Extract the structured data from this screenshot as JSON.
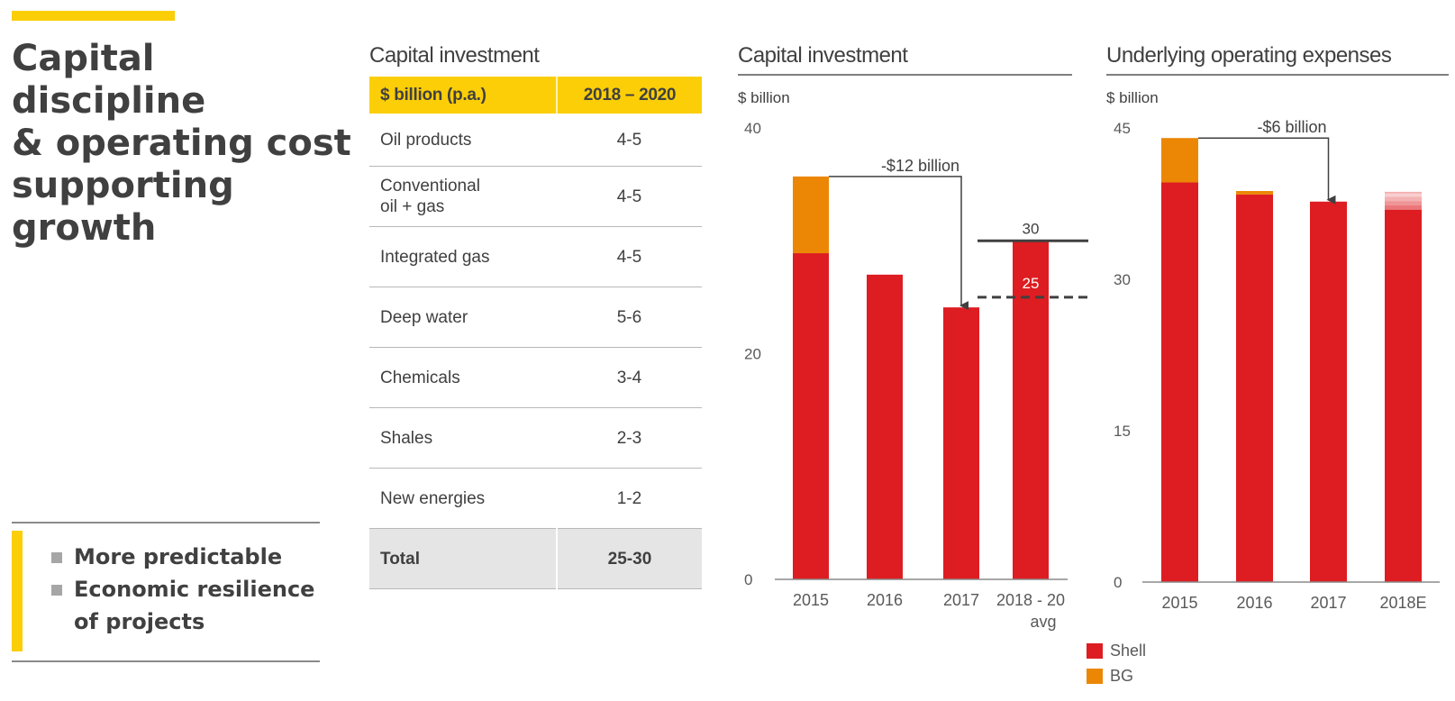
{
  "slide": {
    "title": "Capital discipline & operating cost supporting growth",
    "title_lines": [
      "Capital discipline",
      "& operating cost",
      "supporting",
      "growth"
    ],
    "bullets": [
      "More predictable",
      "Economic resilience of projects"
    ],
    "bullet_lines": [
      [
        "More predictable"
      ],
      [
        "Economic resilience",
        "of projects"
      ]
    ],
    "colors": {
      "accent_yellow": "#FBCE07",
      "shell_red": "#DD1D21",
      "bg_orange": "#EB8705",
      "text": "#404040"
    }
  },
  "table": {
    "title": "Capital investment",
    "headers": [
      "$ billion (p.a.)",
      "2018 – 2020"
    ],
    "rows": [
      {
        "label": "Oil products",
        "value": "4-5"
      },
      {
        "label": "Conventional\noil + gas",
        "label_lines": [
          "Conventional",
          "oil + gas"
        ],
        "value": "4-5"
      },
      {
        "label": "Integrated gas",
        "value": "4-5"
      },
      {
        "label": "Deep water",
        "value": "5-6"
      },
      {
        "label": "Chemicals",
        "value": "3-4"
      },
      {
        "label": "Shales",
        "value": "2-3"
      },
      {
        "label": "New energies",
        "value": "1-2"
      }
    ],
    "total": {
      "label": "Total",
      "value": "25-30"
    }
  },
  "legend": [
    {
      "name": "Shell",
      "color": "#DD1D21"
    },
    {
      "name": "BG",
      "color": "#EB8705"
    }
  ],
  "chart_data": [
    {
      "type": "bar",
      "stacked": true,
      "title": "Capital investment",
      "ylabel": "$ billion",
      "xlabel": "",
      "categories": [
        "2015",
        "2016",
        "2017",
        "2018 - 20 avg"
      ],
      "category_lines": [
        [
          "2015"
        ],
        [
          "2016"
        ],
        [
          "2017"
        ],
        [
          "2018 - 20",
          "avg"
        ]
      ],
      "series": [
        {
          "name": "Shell",
          "values": [
            28.9,
            27.0,
            24.1,
            30.0
          ]
        },
        {
          "name": "BG",
          "values": [
            6.8,
            0,
            0,
            0
          ]
        }
      ],
      "ylim": [
        0,
        40
      ],
      "yticks": [
        0,
        20,
        40
      ],
      "grid": false,
      "reference_lines": [
        {
          "value": 30,
          "label": "30",
          "style": "solid"
        },
        {
          "value": 25,
          "label": "25",
          "style": "dashed"
        }
      ],
      "annotation": {
        "text": "-$12 billion",
        "from_category": "2015",
        "to_category": "2017"
      }
    },
    {
      "type": "bar",
      "stacked": true,
      "title": "Underlying operating expenses",
      "ylabel": "$ billion",
      "xlabel": "",
      "categories": [
        "2015",
        "2016",
        "2017",
        "2018E"
      ],
      "category_lines": [
        [
          "2015"
        ],
        [
          "2016"
        ],
        [
          "2017"
        ],
        [
          "2018E"
        ]
      ],
      "series": [
        {
          "name": "Shell",
          "values": [
            39.6,
            38.4,
            37.7,
            36.9
          ]
        },
        {
          "name": "BG",
          "values": [
            4.4,
            0.35,
            0,
            0
          ]
        }
      ],
      "estimate_range": {
        "category": "2018E",
        "low": 36.9,
        "high": 38.6
      },
      "ylim": [
        0,
        45
      ],
      "yticks": [
        0,
        15,
        30,
        45
      ],
      "grid": false,
      "annotation": {
        "text": "-$6 billion",
        "from_category": "2015",
        "to_category": "2017"
      }
    }
  ]
}
